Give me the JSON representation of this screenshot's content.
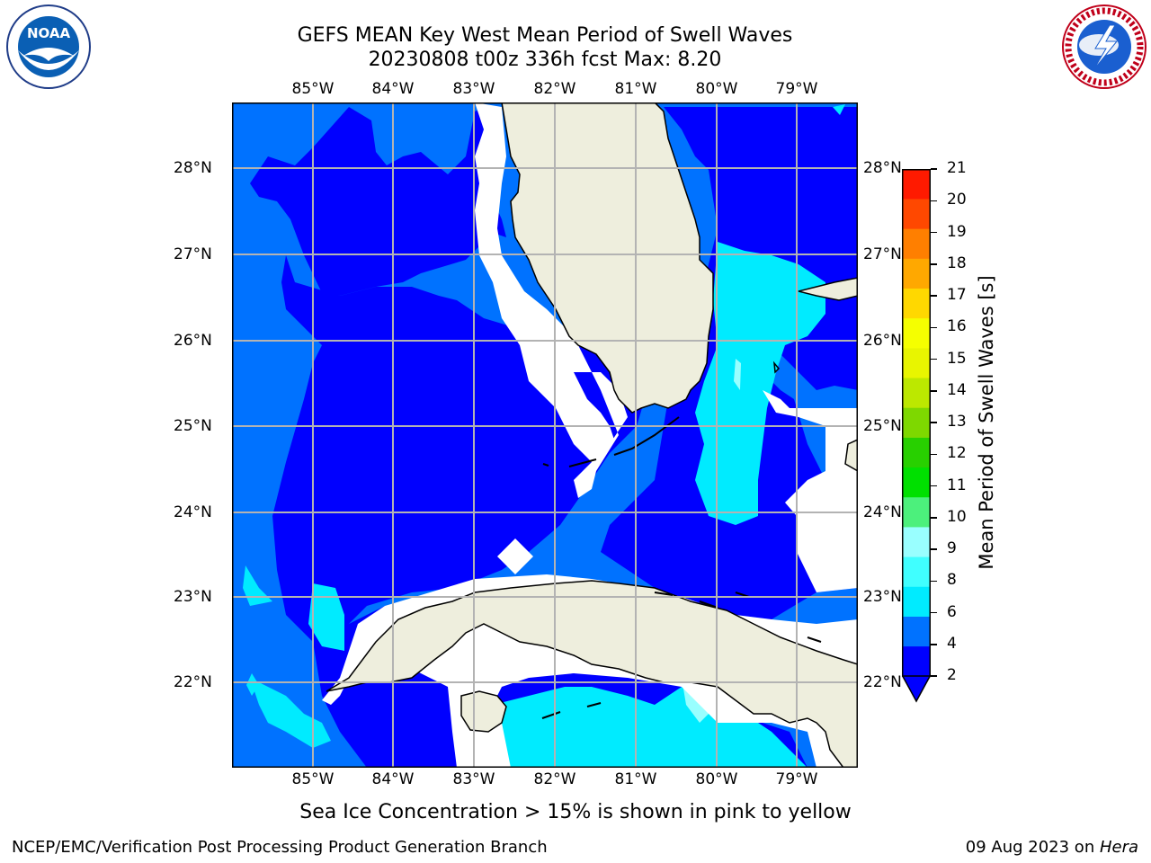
{
  "header": {
    "title_line1": "GEFS MEAN Key West Mean Period of Swell Waves",
    "title_line2": "20230808 t00z 336h fcst   Max: 8.20"
  },
  "logos": {
    "left": {
      "name": "noaa-logo",
      "text": "NOAA"
    },
    "right": {
      "name": "national-weather-service-logo",
      "text": "NATIONAL WEATHER SERVICE"
    }
  },
  "map": {
    "lon_labels": [
      "85°W",
      "84°W",
      "83°W",
      "82°W",
      "81°W",
      "80°W",
      "79°W"
    ],
    "lat_labels": [
      "28°N",
      "27°N",
      "26°N",
      "25°N",
      "24°N",
      "23°N",
      "22°N"
    ],
    "land_color": "#eeeedd",
    "grid_color": "#b3b3b3"
  },
  "colorbar": {
    "label": "Mean Period of Swell Waves [s]",
    "ticks": [
      "21",
      "20",
      "19",
      "18",
      "17",
      "16",
      "15",
      "14",
      "13",
      "12",
      "11",
      "10",
      "9",
      "8",
      "6",
      "4",
      "2"
    ],
    "colors": [
      "#0000ff",
      "#0072ff",
      "#00ebff",
      "#40ffff",
      "#99ffff",
      "#4cf07c",
      "#00e000",
      "#28d000",
      "#7ed800",
      "#bce800",
      "#e8f500",
      "#f5ff00",
      "#ffd800",
      "#ffa800",
      "#ff7f00",
      "#ff4800",
      "#ff1a00"
    ]
  },
  "notes": {
    "sea_ice": "Sea Ice Concentration > 15% is shown in pink to yellow"
  },
  "footer": {
    "left": "NCEP/EMC/Verification Post Processing Product Generation Branch",
    "right_date": "09 Aug 2023 on ",
    "right_host": "Hera"
  }
}
